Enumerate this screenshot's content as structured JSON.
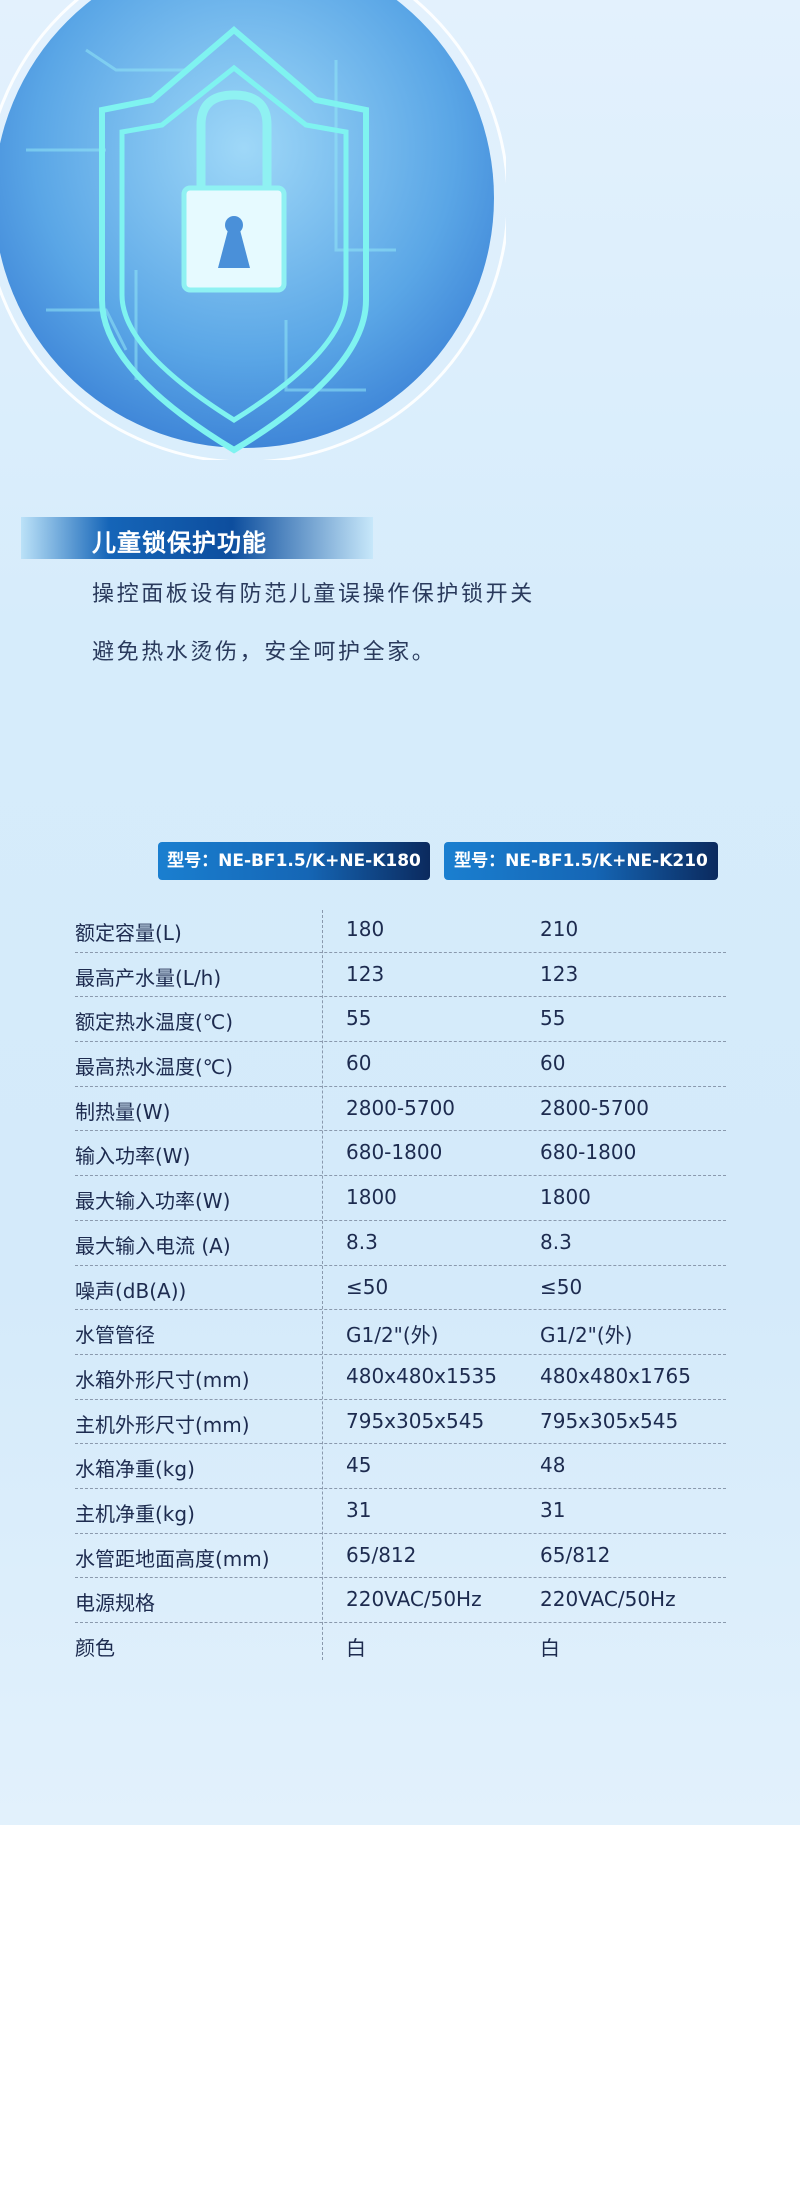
{
  "feature": {
    "title": "儿童锁保护功能",
    "lines": [
      "操控面板设有防范儿童误操作保护锁开关",
      "避免热水烫伤，安全呵护全家。"
    ],
    "illustration_icon": "shield-lock-icon"
  },
  "models": [
    "型号：NE-BF1.5/K+NE-K180",
    "型号：NE-BF1.5/K+NE-K210"
  ],
  "specs": [
    {
      "label": "额定容量(L)",
      "v1": "180",
      "v2": "210"
    },
    {
      "label": "最高产水量(L/h)",
      "v1": "123",
      "v2": "123"
    },
    {
      "label": "额定热水温度(℃)",
      "v1": "55",
      "v2": "55"
    },
    {
      "label": "最高热水温度(℃)",
      "v1": "60",
      "v2": "60"
    },
    {
      "label": "制热量(W)",
      "v1": "2800-5700",
      "v2": "2800-5700"
    },
    {
      "label": "输入功率(W)",
      "v1": "680-1800",
      "v2": "680-1800"
    },
    {
      "label": "最大输入功率(W)",
      "v1": "1800",
      "v2": "1800"
    },
    {
      "label": "最大输入电流 (A)",
      "v1": "8.3",
      "v2": "8.3"
    },
    {
      "label": "噪声(dB(A))",
      "v1": "≤50",
      "v2": "≤50"
    },
    {
      "label": "水管管径",
      "v1": "G1/2\"(外)",
      "v2": "G1/2\"(外)"
    },
    {
      "label": "水箱外形尺寸(mm)",
      "v1": "480x480x1535",
      "v2": "480x480x1765"
    },
    {
      "label": "主机外形尺寸(mm)",
      "v1": "795x305x545",
      "v2": "795x305x545"
    },
    {
      "label": "水箱净重(kg)",
      "v1": "45",
      "v2": "48"
    },
    {
      "label": "主机净重(kg)",
      "v1": "31",
      "v2": "31"
    },
    {
      "label": "水管距地面高度(mm)",
      "v1": "65/812",
      "v2": "65/812"
    },
    {
      "label": "电源规格",
      "v1": "220VAC/50Hz",
      "v2": "220VAC/50Hz"
    },
    {
      "label": "颜色",
      "v1": "白",
      "v2": "白"
    }
  ],
  "colors": {
    "text": "#1d2b4f",
    "accent": "#1566b5",
    "background": "#d6ecfb"
  }
}
